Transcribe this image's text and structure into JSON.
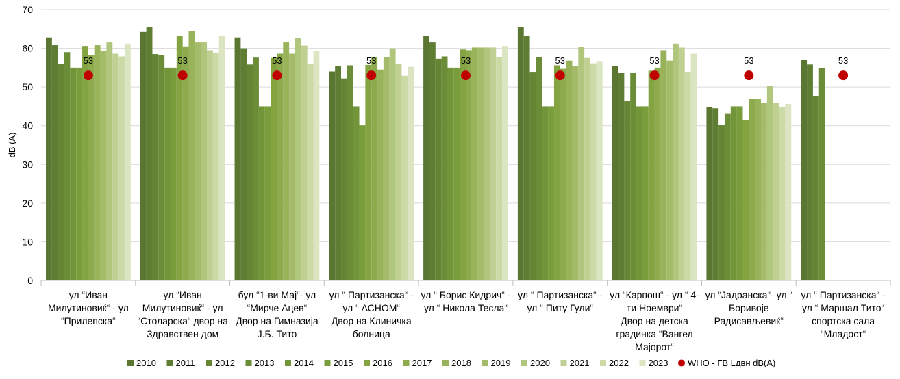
{
  "chart_data": {
    "type": "bar",
    "title": "",
    "xlabel": "",
    "ylabel": "dB (A)",
    "ylim": [
      0,
      70
    ],
    "yticks": [
      "0",
      "10",
      "20",
      "30",
      "40",
      "50",
      "60",
      "70"
    ],
    "grid": true,
    "legend_position": "bottom",
    "categories": [
      [
        "ул “Иван",
        "Милутиновиќ“ - ул",
        "“Прилепска“"
      ],
      [
        "ул “Иван",
        "Милутиновиќ“ - ул",
        "“Столарска“ двор на",
        "Здравствен дом"
      ],
      [
        "бул “1-ви Мај“- ул",
        "“Мирче Ацев“",
        "Двор на Гимназија",
        "Ј.Б. Тито"
      ],
      [
        "ул “ Партизанска“ -",
        "ул “ АСНОМ“",
        "Двор на Клиничка",
        "болница"
      ],
      [
        "ул “ Борис Кидрич“ -",
        "ул “ Никола Тесла“"
      ],
      [
        "ул “ Партизанска“ -",
        "ул “ Питу Гули“"
      ],
      [
        "ул “Карпош“ - ул “ 4-",
        "ти Ноември“",
        "Двор на детска",
        "градинка “Вангел",
        "Мајорот“"
      ],
      [
        "ул “Јадранска“- ул “",
        "Боривоје",
        "Радисављевиќ“"
      ],
      [
        "ул “ Партизанска“ -",
        "ул “ Маршал Тито“",
        "спортска сала",
        "“Младост“"
      ]
    ],
    "series": [
      {
        "name": "2010",
        "color": "#5a7631",
        "values": [
          62.8,
          64.2,
          62.8,
          54.0,
          63.2,
          65.4,
          55.5,
          44.8,
          57.0
        ]
      },
      {
        "name": "2011",
        "color": "#5f7d33",
        "values": [
          60.8,
          65.4,
          60.0,
          55.4,
          61.5,
          63.1,
          53.6,
          44.5,
          55.8
        ]
      },
      {
        "name": "2012",
        "color": "#658535",
        "values": [
          55.9,
          58.5,
          55.8,
          52.2,
          57.3,
          53.9,
          46.4,
          40.3,
          47.7
        ]
      },
      {
        "name": "2013",
        "color": "#6b8d37",
        "values": [
          59.0,
          58.2,
          57.6,
          55.6,
          57.9,
          57.7,
          53.7,
          43.2,
          54.9
        ]
      },
      {
        "name": "2014",
        "color": "#729539",
        "values": [
          55.0,
          55.0,
          45.0,
          45.0,
          55.0,
          45.0,
          45.0,
          45.0,
          null
        ]
      },
      {
        "name": "2015",
        "color": "#7a9d3c",
        "values": [
          55.0,
          55.0,
          45.0,
          40.1,
          55.0,
          45.0,
          45.0,
          45.0,
          null
        ]
      },
      {
        "name": "2016",
        "color": "#84a441",
        "values": [
          60.6,
          63.2,
          57.5,
          55.7,
          59.7,
          55.6,
          54.2,
          41.5,
          null
        ]
      },
      {
        "name": "2017",
        "color": "#8daa4c",
        "values": [
          58.3,
          60.5,
          58.6,
          57.8,
          59.5,
          54.7,
          55.0,
          46.9,
          null
        ]
      },
      {
        "name": "2018",
        "color": "#98b35a",
        "values": [
          60.8,
          64.4,
          61.5,
          54.5,
          60.2,
          56.8,
          59.5,
          46.9,
          null
        ]
      },
      {
        "name": "2019",
        "color": "#a4bc6a",
        "values": [
          59.4,
          61.5,
          58.6,
          57.8,
          60.2,
          55.4,
          56.8,
          45.8,
          null
        ]
      },
      {
        "name": "2020",
        "color": "#b1c67d",
        "values": [
          61.5,
          61.5,
          62.7,
          60.0,
          60.2,
          60.3,
          61.2,
          50.2,
          null
        ]
      },
      {
        "name": "2021",
        "color": "#bfd092",
        "values": [
          58.6,
          59.5,
          60.7,
          55.9,
          60.2,
          57.5,
          60.2,
          45.8,
          null
        ]
      },
      {
        "name": "2022",
        "color": "#ccdaa8",
        "values": [
          57.9,
          58.9,
          56.0,
          52.9,
          57.8,
          56.1,
          53.9,
          44.9,
          null
        ]
      },
      {
        "name": "2023",
        "color": "#dbe5c2",
        "values": [
          61.2,
          63.2,
          59.2,
          55.2,
          60.6,
          56.7,
          58.6,
          45.6,
          null
        ]
      }
    ],
    "reference": {
      "name": "WHO - ГВ Lдвн dB(A)",
      "color": "#c00000",
      "values": [
        53,
        53,
        53,
        53,
        53,
        53,
        53,
        53,
        53
      ],
      "label": "53"
    }
  }
}
